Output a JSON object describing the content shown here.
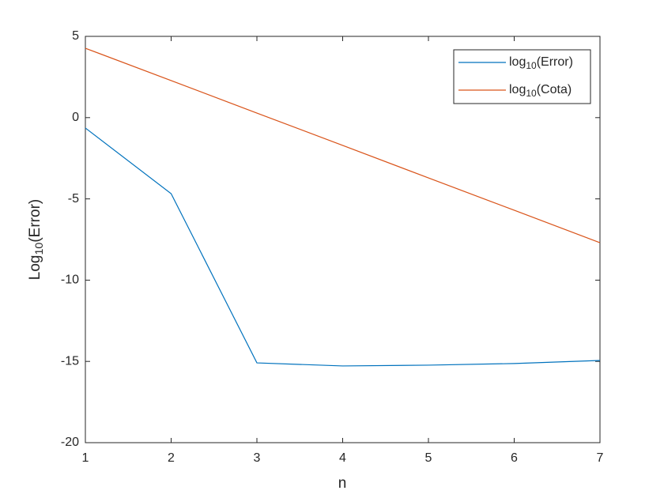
{
  "chart_data": {
    "type": "line",
    "xlabel": "n",
    "ylabel": "Log10(Error)",
    "x": [
      1,
      2,
      3,
      4,
      5,
      6,
      7
    ],
    "series": [
      {
        "name": "log10(Error)",
        "color": "#0072BD",
        "values": [
          -0.64,
          -4.68,
          -15.09,
          -15.28,
          -15.23,
          -15.13,
          -14.94
        ]
      },
      {
        "name": "log10(Cota)",
        "color": "#D95319",
        "values": [
          4.27,
          2.28,
          0.28,
          -1.71,
          -3.71,
          -5.7,
          -7.7
        ]
      }
    ],
    "xlim": [
      1,
      7
    ],
    "xticks": [
      1,
      2,
      3,
      4,
      5,
      6,
      7
    ],
    "ylim": [
      -20,
      5
    ],
    "yticks": [
      -20,
      -15,
      -10,
      -5,
      0,
      5
    ],
    "grid": false,
    "legend": "northeast"
  }
}
